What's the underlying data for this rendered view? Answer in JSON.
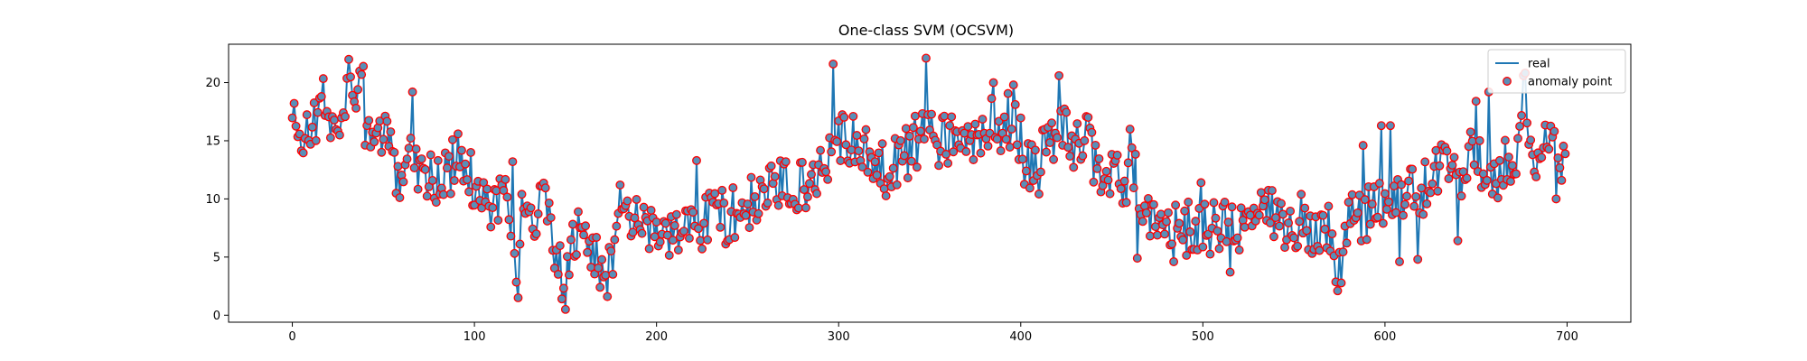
{
  "colors": {
    "line": "#1f77b4",
    "marker_fill": "#5a8fb8",
    "marker_edge": "#ff0000",
    "axes": "#000000",
    "legend_border": "#cccccc"
  },
  "chart_data": {
    "type": "line",
    "title": "One-class SVM (OCSVM)",
    "xlabel": "",
    "ylabel": "",
    "xlim": [
      -35,
      735
    ],
    "ylim": [
      -0.6,
      23.3
    ],
    "xticks": [
      0,
      100,
      200,
      300,
      400,
      500,
      600,
      700
    ],
    "yticks": [
      0,
      5,
      10,
      15,
      20
    ],
    "grid": false,
    "legend": {
      "position": "top-right",
      "entries": [
        {
          "label": "real",
          "kind": "line"
        },
        {
          "label": "anomaly point",
          "kind": "marker"
        }
      ]
    },
    "series": [
      {
        "name": "real",
        "x_start": 0,
        "x_step": 1,
        "anchors": [
          [
            0,
            16.8
          ],
          [
            3,
            15.2
          ],
          [
            5,
            14.5
          ],
          [
            8,
            16.6
          ],
          [
            12,
            16.2
          ],
          [
            16,
            18.6
          ],
          [
            20,
            17.8
          ],
          [
            24,
            15.4
          ],
          [
            27,
            15.1
          ],
          [
            31,
            21.8
          ],
          [
            35,
            19.6
          ],
          [
            38,
            18.3
          ],
          [
            41,
            15.8
          ],
          [
            44,
            14.2
          ],
          [
            48,
            15.8
          ],
          [
            52,
            14.9
          ],
          [
            56,
            12.1
          ],
          [
            60,
            12.6
          ],
          [
            64,
            14.2
          ],
          [
            68,
            13.4
          ],
          [
            72,
            12.4
          ],
          [
            78,
            11.6
          ],
          [
            84,
            11.7
          ],
          [
            90,
            13.6
          ],
          [
            95,
            12.2
          ],
          [
            100,
            11.4
          ],
          [
            105,
            10.4
          ],
          [
            110,
            9.6
          ],
          [
            115,
            10.2
          ],
          [
            118,
            9.5
          ],
          [
            122,
            3.8
          ],
          [
            126,
            8.8
          ],
          [
            130,
            8.6
          ],
          [
            134,
            8.4
          ],
          [
            138,
            9.6
          ],
          [
            142,
            7.2
          ],
          [
            146,
            5.2
          ],
          [
            149,
            0.5
          ],
          [
            152,
            5.2
          ],
          [
            156,
            6.8
          ],
          [
            160,
            6.8
          ],
          [
            165,
            5.5
          ],
          [
            170,
            4.6
          ],
          [
            174,
            5.4
          ],
          [
            178,
            6.2
          ],
          [
            182,
            7.2
          ],
          [
            186,
            8.2
          ],
          [
            190,
            7.8
          ],
          [
            196,
            7.4
          ],
          [
            202,
            7.5
          ],
          [
            208,
            6.7
          ],
          [
            214,
            7.3
          ],
          [
            220,
            7.6
          ],
          [
            226,
            8.2
          ],
          [
            232,
            8.9
          ],
          [
            238,
            8.4
          ],
          [
            244,
            9.1
          ],
          [
            250,
            9.4
          ],
          [
            256,
            9.9
          ],
          [
            262,
            10.6
          ],
          [
            268,
            10.9
          ],
          [
            274,
            11.4
          ],
          [
            280,
            11.3
          ],
          [
            286,
            11.9
          ],
          [
            292,
            12.6
          ],
          [
            296,
            14.4
          ],
          [
            300,
            15.6
          ],
          [
            305,
            15.2
          ],
          [
            310,
            14.4
          ],
          [
            315,
            13.6
          ],
          [
            320,
            12.8
          ],
          [
            326,
            12.6
          ],
          [
            332,
            13.4
          ],
          [
            338,
            14.2
          ],
          [
            343,
            14.9
          ],
          [
            348,
            17.8
          ],
          [
            353,
            14.9
          ],
          [
            358,
            15.6
          ],
          [
            363,
            14.6
          ],
          [
            368,
            14.4
          ],
          [
            373,
            15.2
          ],
          [
            378,
            15.2
          ],
          [
            383,
            16.2
          ],
          [
            388,
            16.4
          ],
          [
            393,
            16.7
          ],
          [
            398,
            16.4
          ],
          [
            402,
            13.6
          ],
          [
            406,
            12.6
          ],
          [
            410,
            12.6
          ],
          [
            415,
            14.9
          ],
          [
            420,
            15.6
          ],
          [
            425,
            15.9
          ],
          [
            430,
            14.4
          ],
          [
            435,
            15.9
          ],
          [
            440,
            13.6
          ],
          [
            446,
            12.4
          ],
          [
            452,
            11.4
          ],
          [
            458,
            11.7
          ],
          [
            462,
            12.2
          ],
          [
            466,
            10.4
          ],
          [
            470,
            8.6
          ],
          [
            475,
            8.2
          ],
          [
            480,
            7.6
          ],
          [
            486,
            7.2
          ],
          [
            492,
            7.6
          ],
          [
            498,
            7.2
          ],
          [
            504,
            7.4
          ],
          [
            510,
            7.6
          ],
          [
            516,
            7.3
          ],
          [
            522,
            7.8
          ],
          [
            528,
            8.2
          ],
          [
            534,
            8.6
          ],
          [
            540,
            8.4
          ],
          [
            546,
            7.6
          ],
          [
            552,
            7.4
          ],
          [
            558,
            7.6
          ],
          [
            564,
            7.9
          ],
          [
            570,
            7.9
          ],
          [
            574,
            2.1
          ],
          [
            578,
            7.6
          ],
          [
            584,
            8.6
          ],
          [
            590,
            8.8
          ],
          [
            596,
            9.6
          ],
          [
            600,
            9.6
          ],
          [
            605,
            9.9
          ],
          [
            610,
            10.6
          ],
          [
            615,
            10.4
          ],
          [
            620,
            10.6
          ],
          [
            626,
            11.9
          ],
          [
            632,
            12.6
          ],
          [
            637,
            13.4
          ],
          [
            642,
            12.6
          ],
          [
            648,
            13.6
          ],
          [
            654,
            12.2
          ],
          [
            660,
            11.9
          ],
          [
            666,
            13.4
          ],
          [
            670,
            13.6
          ],
          [
            674,
            15.4
          ],
          [
            676,
            20.6
          ],
          [
            680,
            13.6
          ],
          [
            684,
            13.4
          ],
          [
            688,
            15.2
          ],
          [
            692,
            13.6
          ],
          [
            696,
            13.4
          ],
          [
            699,
            13.6
          ]
        ],
        "noise_amplitude": 2.4,
        "spikes": [
          [
            31,
            22.0
          ],
          [
            39,
            21.4
          ],
          [
            66,
            19.2
          ],
          [
            121,
            13.2
          ],
          [
            124,
            1.5
          ],
          [
            148,
            1.4
          ],
          [
            150,
            0.5
          ],
          [
            173,
            1.6
          ],
          [
            180,
            11.2
          ],
          [
            222,
            13.3
          ],
          [
            271,
            13.2
          ],
          [
            297,
            21.6
          ],
          [
            348,
            22.1
          ],
          [
            357,
            17.0
          ],
          [
            385,
            20.0
          ],
          [
            396,
            19.8
          ],
          [
            421,
            20.6
          ],
          [
            460,
            16.0
          ],
          [
            464,
            4.9
          ],
          [
            484,
            4.6
          ],
          [
            499,
            11.4
          ],
          [
            515,
            3.7
          ],
          [
            554,
            10.4
          ],
          [
            574,
            2.1
          ],
          [
            588,
            14.6
          ],
          [
            598,
            16.3
          ],
          [
            603,
            16.3
          ],
          [
            608,
            4.6
          ],
          [
            618,
            4.8
          ],
          [
            640,
            6.4
          ],
          [
            650,
            18.4
          ],
          [
            657,
            19.2
          ],
          [
            676,
            20.6
          ],
          [
            681,
            13.8
          ],
          [
            694,
            10.0
          ]
        ]
      }
    ],
    "anomaly_points": "all points of the real series"
  }
}
